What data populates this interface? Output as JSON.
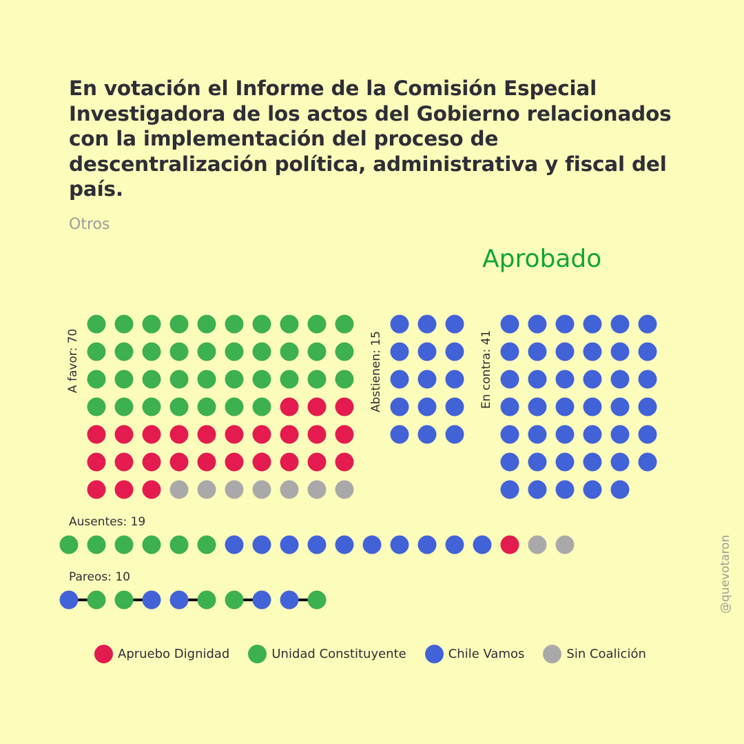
{
  "title": "En votación el Informe de la Comisión Especial Investigadora de los actos del Gobierno relacionados con la implementación del proceso de descentralización política, administrativa y fiscal del país.",
  "subtitle": "Otros",
  "result": "Aprobado",
  "watermark": "@quevotaron",
  "colors": {
    "Apruebo Dignidad": "#e41b4e",
    "Unidad Constituyente": "#3db04f",
    "Chile Vamos": "#4262d8",
    "Sin Coalición": "#a9a9a9"
  },
  "legend": [
    "Apruebo Dignidad",
    "Unidad Constituyente",
    "Chile Vamos",
    "Sin Coalición"
  ],
  "chart_data": {
    "type": "dot-matrix",
    "groups": [
      {
        "label": "A favor: 70",
        "total": 70,
        "counts": {
          "Unidad Constituyente": 37,
          "Apruebo Dignidad": 26,
          "Sin Coalición": 7
        }
      },
      {
        "label": "Abstienen: 15",
        "total": 15,
        "counts": {
          "Chile Vamos": 15
        }
      },
      {
        "label": "En contra: 41",
        "total": 41,
        "counts": {
          "Chile Vamos": 41
        }
      },
      {
        "label": "Ausentes: 19",
        "total": 19,
        "counts": {
          "Unidad Constituyente": 6,
          "Chile Vamos": 10,
          "Apruebo Dignidad": 1,
          "Sin Coalición": 2
        }
      },
      {
        "label": "Pareos: 10",
        "total": 10,
        "sequence": [
          "Chile Vamos",
          "Unidad Constituyente",
          "Unidad Constituyente",
          "Chile Vamos",
          "Chile Vamos",
          "Unidad Constituyente",
          "Unidad Constituyente",
          "Chile Vamos",
          "Chile Vamos",
          "Unidad Constituyente"
        ]
      }
    ]
  }
}
